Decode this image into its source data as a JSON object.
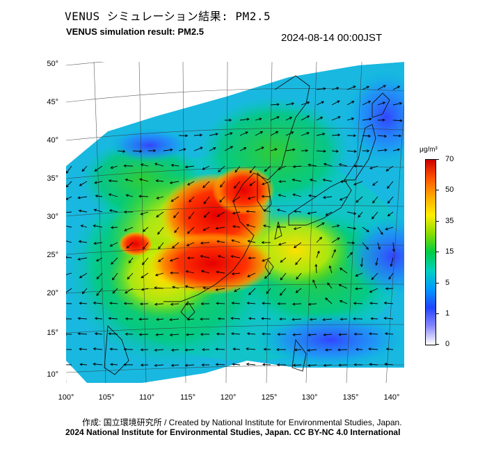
{
  "header": {
    "title_jp": "VENUS シミュレーション結果: PM2.5",
    "title_en": "VENUS simulation result: PM2.5",
    "timestamp": "2024-08-14 00:00JST"
  },
  "map": {
    "lat_labels": [
      "50°",
      "45°",
      "40°",
      "35°",
      "30°",
      "25°",
      "20°",
      "15°",
      "10°"
    ],
    "lon_labels": [
      "100°",
      "105°",
      "110°",
      "115°",
      "120°",
      "125°",
      "130°",
      "135°",
      "140°"
    ],
    "field": "PM2.5 surface concentration with wind vectors"
  },
  "colorbar": {
    "unit": "μg/m³",
    "ticks": [
      "70",
      "50",
      "35",
      "15",
      "5",
      "1",
      "0"
    ],
    "colors": [
      "#cc0000",
      "#ff5500",
      "#ffaa00",
      "#ffee00",
      "#88dd00",
      "#00cc44",
      "#00d0c0",
      "#0099ff",
      "#2244ff",
      "#8888ff",
      "#ffffff"
    ]
  },
  "footer": {
    "credit_line": "作成: 国立環境研究所 / Created by National Institute for Environmental Studies, Japan.",
    "license_line": "2024 National Institute for Environmental Studies, Japan. CC BY-NC 4.0 International"
  }
}
